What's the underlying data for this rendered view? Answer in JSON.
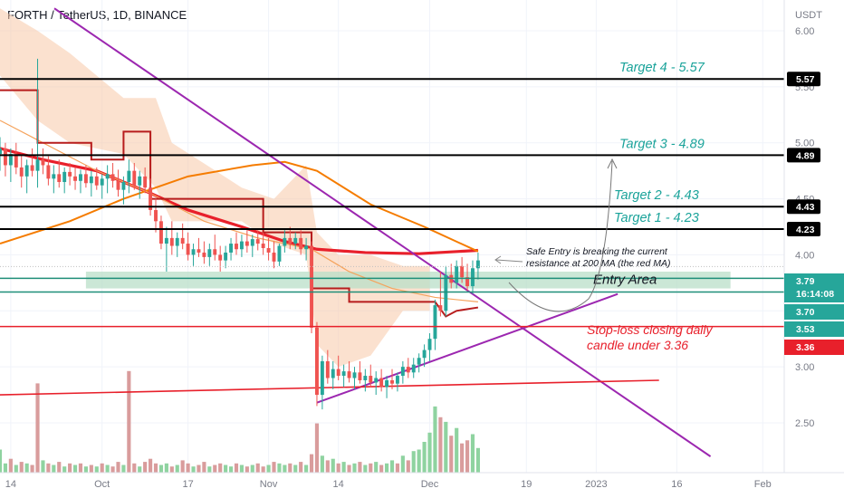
{
  "header": {
    "title": "FORTH / TetherUS, 1D, BINANCE"
  },
  "colors": {
    "up": "#26a69a",
    "down": "#ef5350",
    "ma200": "#e8202b",
    "ma_orange": "#f57c00",
    "trend": "#9c27b0",
    "baseline": "#e8202b",
    "cloud": "#f8c9a8",
    "entry_zone": "#b9dfc8",
    "dark_red": "#b71c1c"
  },
  "chart_data": {
    "type": "candlestick",
    "title": "FORTH / TetherUS, 1D, BINANCE",
    "currency_label": "USDT",
    "y_ticks": [
      {
        "value": 6.0,
        "label": "6.00"
      },
      {
        "value": 5.5,
        "label": "5.50"
      },
      {
        "value": 5.0,
        "label": "5.00"
      },
      {
        "value": 4.5,
        "label": "4.50"
      },
      {
        "value": 4.0,
        "label": "4.00"
      },
      {
        "value": 3.5,
        "label": "3.50"
      },
      {
        "value": 3.0,
        "label": "3.00"
      },
      {
        "value": 2.5,
        "label": "2.50"
      }
    ],
    "x_ticks": [
      {
        "day": -21,
        "label": "14"
      },
      {
        "day": -4,
        "label": "Oct"
      },
      {
        "day": 12,
        "label": "17"
      },
      {
        "day": 27,
        "label": "Nov"
      },
      {
        "day": 40,
        "label": "14"
      },
      {
        "day": 57,
        "label": "Dec"
      },
      {
        "day": 75,
        "label": "19"
      },
      {
        "day": 88,
        "label": "2023"
      },
      {
        "day": 103,
        "label": "16"
      },
      {
        "day": 119,
        "label": "Feb"
      }
    ],
    "x_range": [
      -23,
      123
    ],
    "y_range": [
      2.15,
      6.2
    ],
    "levels": [
      {
        "name": "target-4",
        "label": "Target 4 - 5.57",
        "value": 5.57,
        "tag": "5.57"
      },
      {
        "name": "target-3",
        "label": "Target 3 - 4.89",
        "value": 4.89,
        "tag": "4.89"
      },
      {
        "name": "target-2",
        "label": "Target 2 - 4.43",
        "value": 4.43,
        "tag": "4.43"
      },
      {
        "name": "target-1",
        "label": "Target 1 - 4.23",
        "value": 4.23,
        "tag": "4.23"
      }
    ],
    "price_tags": [
      {
        "value": 3.79,
        "label": "3.79",
        "sub": "16:14:08",
        "color": "#26a69a"
      },
      {
        "value": 3.7,
        "label": "3.70",
        "color": "#26a69a"
      },
      {
        "value": 3.53,
        "label": "3.53",
        "color": "#26a69a"
      },
      {
        "value": 3.36,
        "label": "3.36",
        "color": "#e8202b"
      }
    ],
    "entry_area": {
      "label": "Entry Area",
      "from_day": -7,
      "to_day": 113,
      "low": 3.7,
      "high": 3.85
    },
    "stop_loss": {
      "value": 3.53,
      "text_line1": "Stop-loss closing daily",
      "text_line2": "candle under 3.36"
    },
    "annotation": {
      "line1": "Safe Entry is breaking the current",
      "line2": "resistance at 200 MA (the red MA)"
    },
    "candles": [
      [
        -23,
        4.9,
        5.05,
        4.75,
        4.95
      ],
      [
        -22,
        4.95,
        5.0,
        4.7,
        4.8
      ],
      [
        -21,
        4.8,
        4.95,
        4.65,
        4.9
      ],
      [
        -20,
        4.9,
        5.0,
        4.72,
        4.78
      ],
      [
        -19,
        4.78,
        4.9,
        4.6,
        4.7
      ],
      [
        -18,
        4.7,
        4.85,
        4.55,
        4.8
      ],
      [
        -17,
        4.8,
        4.95,
        4.7,
        4.75
      ],
      [
        -16,
        4.75,
        5.75,
        4.6,
        4.85
      ],
      [
        -15,
        4.85,
        4.95,
        4.72,
        4.8
      ],
      [
        -14,
        4.8,
        4.88,
        4.62,
        4.68
      ],
      [
        -13,
        4.68,
        4.8,
        4.55,
        4.72
      ],
      [
        -12,
        4.72,
        4.85,
        4.6,
        4.65
      ],
      [
        -11,
        4.65,
        4.78,
        4.55,
        4.74
      ],
      [
        -10,
        4.74,
        4.82,
        4.62,
        4.7
      ],
      [
        -9,
        4.7,
        4.78,
        4.58,
        4.66
      ],
      [
        -8,
        4.66,
        4.76,
        4.55,
        4.72
      ],
      [
        -7,
        4.72,
        4.8,
        4.6,
        4.64
      ],
      [
        -6,
        4.64,
        4.75,
        4.52,
        4.7
      ],
      [
        -5,
        4.7,
        4.78,
        4.58,
        4.62
      ],
      [
        -4,
        4.62,
        4.72,
        4.5,
        4.68
      ],
      [
        -3,
        4.68,
        4.8,
        4.55,
        4.72
      ],
      [
        -2,
        4.72,
        4.82,
        4.6,
        4.66
      ],
      [
        -1,
        4.66,
        4.76,
        4.52,
        4.58
      ],
      [
        0,
        4.58,
        4.7,
        4.45,
        4.65
      ],
      [
        1,
        4.65,
        4.85,
        4.55,
        4.75
      ],
      [
        2,
        4.75,
        4.82,
        4.58,
        4.62
      ],
      [
        3,
        4.62,
        4.75,
        4.5,
        4.7
      ],
      [
        4,
        4.7,
        4.78,
        4.55,
        4.6
      ],
      [
        5,
        4.6,
        4.68,
        4.35,
        4.4
      ],
      [
        6,
        4.4,
        4.5,
        4.2,
        4.3
      ],
      [
        7,
        4.3,
        4.35,
        4.05,
        4.1
      ],
      [
        8,
        4.1,
        4.25,
        3.85,
        4.15
      ],
      [
        9,
        4.15,
        4.3,
        4.0,
        4.08
      ],
      [
        10,
        4.08,
        4.2,
        3.98,
        4.15
      ],
      [
        11,
        4.15,
        4.28,
        4.05,
        4.1
      ],
      [
        12,
        4.1,
        4.2,
        3.95,
        4.0
      ],
      [
        13,
        4.0,
        4.1,
        3.9,
        4.05
      ],
      [
        14,
        4.05,
        4.15,
        3.98,
        4.02
      ],
      [
        15,
        4.02,
        4.12,
        3.92,
        3.98
      ],
      [
        16,
        3.98,
        4.1,
        3.9,
        4.05
      ],
      [
        17,
        4.05,
        4.18,
        3.95,
        4.0
      ],
      [
        18,
        4.0,
        4.08,
        3.85,
        3.95
      ],
      [
        19,
        3.95,
        4.08,
        3.88,
        4.02
      ],
      [
        20,
        4.02,
        4.15,
        3.95,
        4.1
      ],
      [
        21,
        4.1,
        4.2,
        4.0,
        4.05
      ],
      [
        22,
        4.05,
        4.18,
        3.98,
        4.12
      ],
      [
        23,
        4.12,
        4.22,
        4.02,
        4.08
      ],
      [
        24,
        4.08,
        4.18,
        3.98,
        4.14
      ],
      [
        25,
        4.14,
        4.22,
        4.04,
        4.1
      ],
      [
        26,
        4.1,
        4.2,
        4.0,
        4.06
      ],
      [
        27,
        4.06,
        4.15,
        3.95,
        4.02
      ],
      [
        28,
        4.02,
        4.12,
        3.88,
        3.94
      ],
      [
        29,
        3.94,
        4.1,
        3.9,
        4.08
      ],
      [
        30,
        4.08,
        4.22,
        4.02,
        4.15
      ],
      [
        31,
        4.15,
        4.25,
        4.05,
        4.1
      ],
      [
        32,
        4.1,
        4.2,
        4.05,
        4.15
      ],
      [
        33,
        4.15,
        4.22,
        4.0,
        4.05
      ],
      [
        34,
        4.05,
        4.15,
        3.95,
        4.08
      ],
      [
        35,
        4.08,
        4.12,
        3.3,
        3.35
      ],
      [
        36,
        3.35,
        3.4,
        2.65,
        2.75
      ],
      [
        37,
        2.75,
        3.1,
        2.62,
        3.05
      ],
      [
        38,
        3.05,
        3.15,
        2.85,
        2.9
      ],
      [
        39,
        2.9,
        3.05,
        2.8,
        2.98
      ],
      [
        40,
        2.98,
        3.1,
        2.88,
        2.92
      ],
      [
        41,
        2.92,
        3.02,
        2.82,
        2.96
      ],
      [
        42,
        2.96,
        3.05,
        2.86,
        2.9
      ],
      [
        43,
        2.9,
        3.0,
        2.8,
        2.95
      ],
      [
        44,
        2.95,
        3.05,
        2.85,
        2.88
      ],
      [
        45,
        2.88,
        2.98,
        2.78,
        2.92
      ],
      [
        46,
        2.92,
        3.02,
        2.82,
        2.86
      ],
      [
        47,
        2.86,
        2.96,
        2.75,
        2.9
      ],
      [
        48,
        2.9,
        2.98,
        2.78,
        2.82
      ],
      [
        49,
        2.82,
        2.92,
        2.72,
        2.88
      ],
      [
        50,
        2.88,
        2.98,
        2.8,
        2.85
      ],
      [
        51,
        2.85,
        2.95,
        2.78,
        2.92
      ],
      [
        52,
        2.92,
        3.05,
        2.85,
        3.0
      ],
      [
        53,
        3.0,
        3.08,
        2.9,
        2.95
      ],
      [
        54,
        2.95,
        3.08,
        2.9,
        3.02
      ],
      [
        55,
        3.02,
        3.12,
        2.95,
        3.08
      ],
      [
        56,
        3.08,
        3.2,
        3.0,
        3.15
      ],
      [
        57,
        3.15,
        3.3,
        3.05,
        3.25
      ],
      [
        58,
        3.25,
        3.6,
        3.15,
        3.55
      ],
      [
        59,
        3.55,
        3.85,
        3.45,
        3.5
      ],
      [
        60,
        3.5,
        3.9,
        3.45,
        3.82
      ],
      [
        61,
        3.82,
        3.92,
        3.7,
        3.75
      ],
      [
        62,
        3.75,
        3.95,
        3.7,
        3.9
      ],
      [
        63,
        3.9,
        3.98,
        3.75,
        3.8
      ],
      [
        64,
        3.8,
        3.92,
        3.68,
        3.72
      ],
      [
        65,
        3.72,
        3.95,
        3.65,
        3.88
      ],
      [
        66,
        3.88,
        4.02,
        3.78,
        3.95
      ]
    ],
    "volumes": [
      [
        -23,
        1.5,
        "up"
      ],
      [
        -22,
        0.6,
        "up"
      ],
      [
        -21,
        0.9,
        "down"
      ],
      [
        -20,
        0.5,
        "up"
      ],
      [
        -19,
        0.7,
        "down"
      ],
      [
        -18,
        0.6,
        "up"
      ],
      [
        -17,
        0.5,
        "down"
      ],
      [
        -16,
        5.8,
        "down"
      ],
      [
        -15,
        0.8,
        "up"
      ],
      [
        -14,
        0.6,
        "down"
      ],
      [
        -13,
        0.5,
        "up"
      ],
      [
        -12,
        0.7,
        "down"
      ],
      [
        -11,
        0.4,
        "up"
      ],
      [
        -10,
        0.6,
        "down"
      ],
      [
        -9,
        0.5,
        "up"
      ],
      [
        -8,
        0.6,
        "down"
      ],
      [
        -7,
        0.4,
        "up"
      ],
      [
        -6,
        0.5,
        "down"
      ],
      [
        -5,
        0.4,
        "up"
      ],
      [
        -4,
        0.6,
        "down"
      ],
      [
        -3,
        0.5,
        "up"
      ],
      [
        -2,
        0.4,
        "down"
      ],
      [
        -1,
        0.7,
        "down"
      ],
      [
        0,
        0.5,
        "up"
      ],
      [
        1,
        6.6,
        "down"
      ],
      [
        2,
        0.6,
        "down"
      ],
      [
        3,
        0.4,
        "up"
      ],
      [
        4,
        0.7,
        "down"
      ],
      [
        5,
        0.9,
        "down"
      ],
      [
        6,
        0.6,
        "down"
      ],
      [
        7,
        0.5,
        "up"
      ],
      [
        8,
        0.6,
        "up"
      ],
      [
        9,
        0.4,
        "down"
      ],
      [
        10,
        0.5,
        "up"
      ],
      [
        11,
        0.8,
        "down"
      ],
      [
        12,
        0.6,
        "down"
      ],
      [
        13,
        0.4,
        "up"
      ],
      [
        14,
        0.5,
        "down"
      ],
      [
        15,
        0.7,
        "down"
      ],
      [
        16,
        0.4,
        "up"
      ],
      [
        17,
        0.5,
        "down"
      ],
      [
        18,
        0.6,
        "down"
      ],
      [
        19,
        0.5,
        "up"
      ],
      [
        20,
        0.4,
        "up"
      ],
      [
        21,
        0.6,
        "down"
      ],
      [
        22,
        0.5,
        "up"
      ],
      [
        23,
        0.4,
        "down"
      ],
      [
        24,
        0.5,
        "up"
      ],
      [
        25,
        0.6,
        "down"
      ],
      [
        26,
        0.4,
        "down"
      ],
      [
        27,
        0.5,
        "up"
      ],
      [
        28,
        0.7,
        "down"
      ],
      [
        29,
        0.6,
        "up"
      ],
      [
        30,
        0.5,
        "up"
      ],
      [
        31,
        0.6,
        "down"
      ],
      [
        32,
        0.5,
        "up"
      ],
      [
        33,
        0.7,
        "down"
      ],
      [
        34,
        0.5,
        "up"
      ],
      [
        35,
        1.2,
        "down"
      ],
      [
        36,
        3.2,
        "down"
      ],
      [
        37,
        1.1,
        "up"
      ],
      [
        38,
        0.8,
        "down"
      ],
      [
        39,
        0.9,
        "up"
      ],
      [
        40,
        0.6,
        "down"
      ],
      [
        41,
        0.7,
        "up"
      ],
      [
        42,
        0.5,
        "down"
      ],
      [
        43,
        0.6,
        "up"
      ],
      [
        44,
        0.7,
        "down"
      ],
      [
        45,
        0.5,
        "up"
      ],
      [
        46,
        0.6,
        "down"
      ],
      [
        47,
        0.7,
        "up"
      ],
      [
        48,
        0.5,
        "down"
      ],
      [
        49,
        0.6,
        "up"
      ],
      [
        50,
        0.8,
        "up"
      ],
      [
        51,
        0.6,
        "down"
      ],
      [
        52,
        1.1,
        "up"
      ],
      [
        53,
        0.8,
        "down"
      ],
      [
        54,
        1.4,
        "up"
      ],
      [
        55,
        1.5,
        "up"
      ],
      [
        56,
        2.0,
        "up"
      ],
      [
        57,
        2.6,
        "up"
      ],
      [
        58,
        4.3,
        "up"
      ],
      [
        59,
        3.6,
        "down"
      ],
      [
        60,
        3.3,
        "up"
      ],
      [
        61,
        2.4,
        "down"
      ],
      [
        62,
        2.9,
        "up"
      ],
      [
        63,
        1.9,
        "down"
      ],
      [
        64,
        2.1,
        "down"
      ],
      [
        65,
        2.5,
        "up"
      ],
      [
        66,
        1.6,
        "up"
      ]
    ]
  }
}
